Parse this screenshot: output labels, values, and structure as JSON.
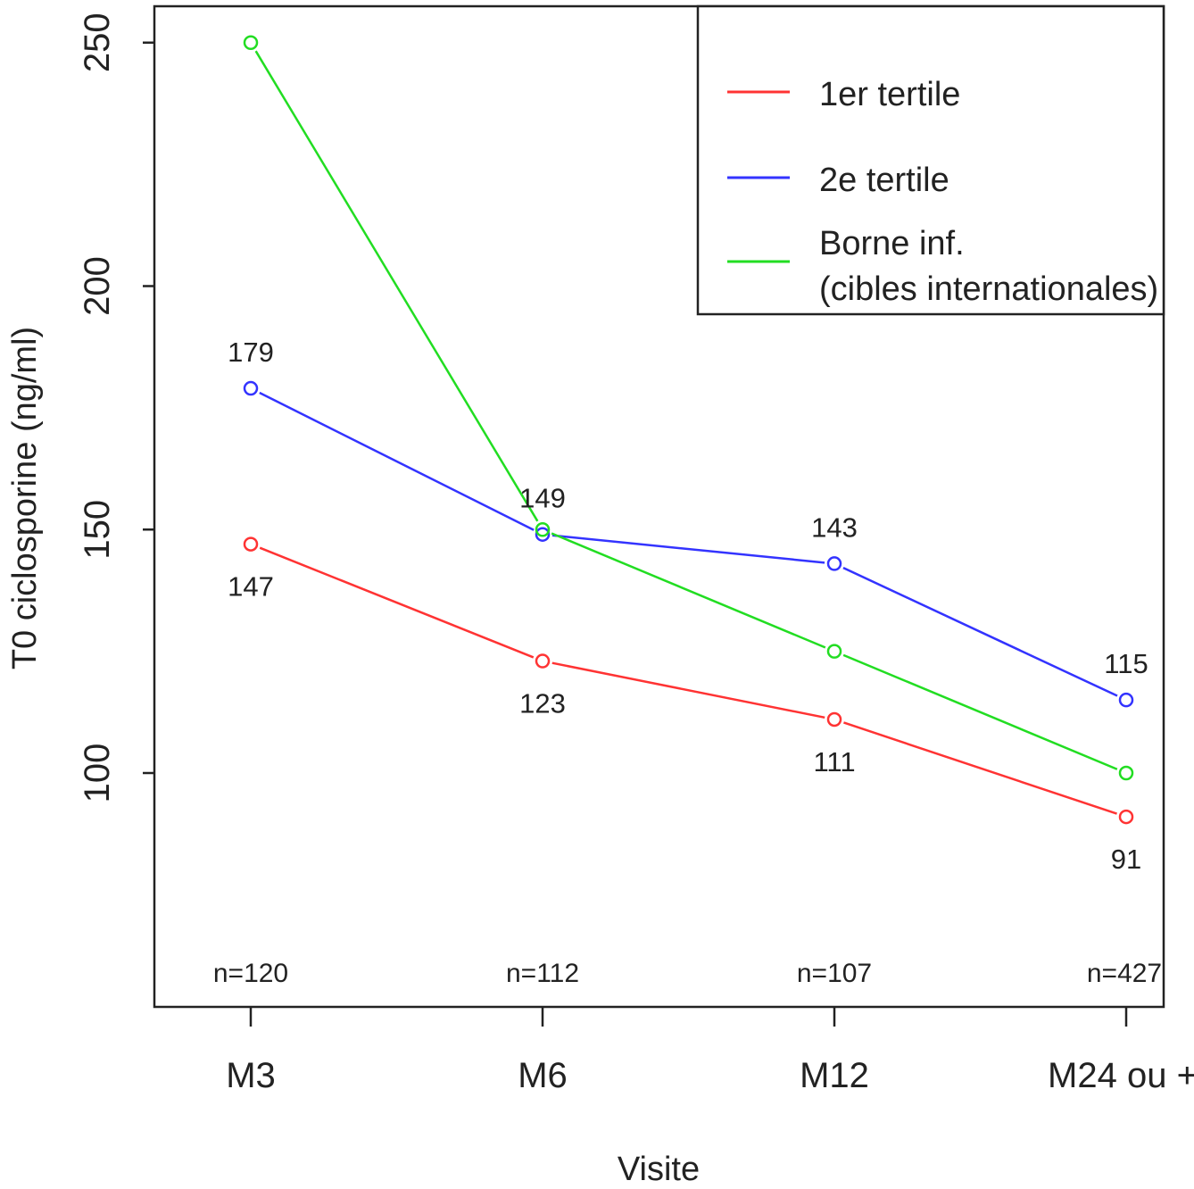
{
  "chart_data": {
    "type": "line",
    "title": "",
    "xlabel": "Visite",
    "ylabel": "T0 ciclosporine (ng/ml)",
    "categories": [
      "M3",
      "M6",
      "M12",
      "M24 ou +"
    ],
    "y_ticks": [
      "100",
      "150",
      "200",
      "250"
    ],
    "ylim": [
      60,
      260
    ],
    "grid": false,
    "legend_position": "top-right",
    "series": [
      {
        "name": "1er tertile",
        "color": "#ff3333",
        "values": [
          147,
          123,
          111,
          91
        ],
        "labels": [
          "147",
          "123",
          "111",
          "91"
        ],
        "label_side": "below"
      },
      {
        "name": "2e tertile",
        "color": "#3333ff",
        "values": [
          179,
          149,
          143,
          115
        ],
        "labels": [
          "179",
          "149",
          "143",
          "115"
        ],
        "label_side": "above"
      },
      {
        "name": "Borne inf.",
        "name_line2": "(cibles internationales)",
        "color": "#22dd22",
        "values": [
          250,
          150,
          125,
          100
        ],
        "labels": [],
        "label_side": "none"
      }
    ],
    "n_labels": [
      "n=120",
      "n=112",
      "n=107",
      "n=427"
    ]
  }
}
